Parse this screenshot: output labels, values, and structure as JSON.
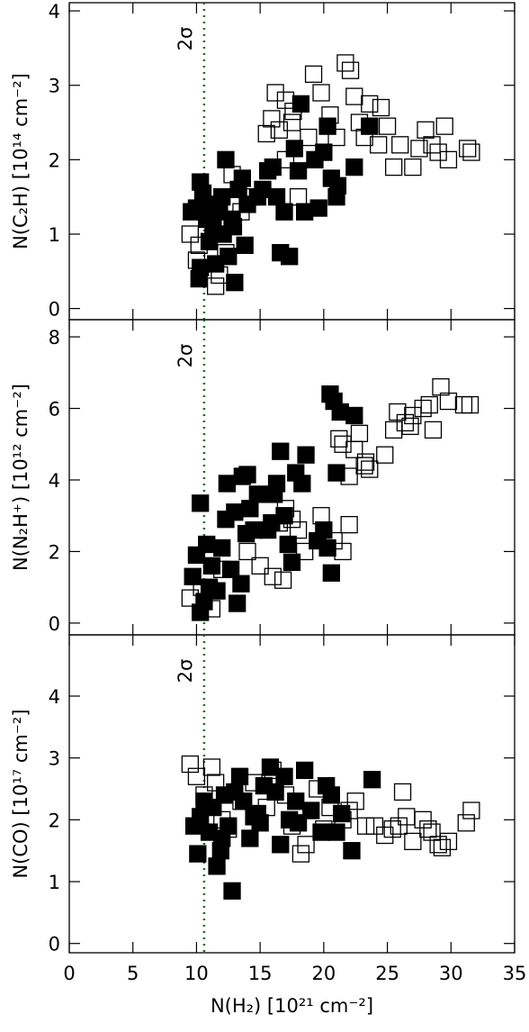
{
  "chart_data": [
    {
      "type": "scatter",
      "ylabel": "N(C₂H) [10¹⁴ cm⁻²]",
      "xlim": [
        0,
        35
      ],
      "xticks": [
        0,
        5,
        10,
        15,
        20,
        25,
        30,
        35
      ],
      "ylim": [
        -0.15,
        4.11
      ],
      "yticks": [
        0,
        1,
        2,
        3,
        4
      ],
      "threshold": {
        "x": 10.6,
        "label": "2σ",
        "color": "#1a6e1a"
      },
      "series": [
        {
          "color": "#000000",
          "marker": "filled",
          "x": [
            10.3,
            10.5,
            10.2,
            10.3,
            9.6,
            10.0,
            10.8,
            11.0,
            11.3,
            11.5,
            11.8,
            12.0,
            12.1,
            12.3,
            12.5,
            12.8,
            13.0,
            13.3,
            13.6,
            13.8,
            14.0,
            15.2,
            15.6,
            16.0,
            16.3,
            16.6,
            16.9,
            17.3,
            17.7,
            18.2,
            18.0,
            18.5,
            19.3,
            19.6,
            20.0,
            20.3,
            20.6,
            21.0,
            21.1,
            22.4,
            23.6,
            12.9,
            11.2,
            14.8
          ],
          "values": [
            1.7,
            1.55,
            0.4,
            0.55,
            1.3,
            1.35,
            1.2,
            0.9,
            1.1,
            0.6,
            1.3,
            1.5,
            1.0,
            2.0,
            0.7,
            1.2,
            0.35,
            1.6,
            1.75,
            0.85,
            1.4,
            1.6,
            1.85,
            1.9,
            1.5,
            0.75,
            1.3,
            0.7,
            2.15,
            2.75,
            1.85,
            1.3,
            2.0,
            1.35,
            2.1,
            2.45,
            1.75,
            1.5,
            1.65,
            1.9,
            2.45,
            1.1,
            1.4,
            1.5
          ]
        },
        {
          "color": "#000000",
          "marker": "open",
          "x": [
            9.5,
            10.0,
            10.2,
            11.5,
            11.8,
            12.3,
            12.8,
            13.5,
            14.2,
            15.5,
            15.9,
            16.5,
            17.0,
            17.5,
            16.2,
            17.0,
            18.0,
            18.8,
            19.2,
            19.8,
            20.5,
            21.0,
            21.7,
            22.1,
            22.4,
            22.8,
            23.2,
            23.6,
            24.5,
            25.0,
            24.3,
            25.5,
            26.0,
            27.0,
            27.5,
            28.0,
            28.5,
            29.0,
            29.5,
            29.8,
            31.3,
            31.6,
            17.6
          ],
          "values": [
            1.0,
            0.65,
            0.85,
            0.3,
            0.45,
            0.75,
            1.8,
            1.3,
            1.5,
            2.35,
            2.55,
            2.4,
            2.8,
            2.5,
            2.9,
            2.0,
            1.5,
            2.3,
            3.15,
            2.9,
            2.6,
            2.3,
            3.3,
            3.2,
            2.85,
            2.5,
            2.3,
            2.75,
            2.7,
            2.45,
            2.2,
            1.9,
            2.2,
            1.9,
            2.15,
            2.4,
            2.2,
            2.1,
            2.45,
            2.0,
            2.15,
            2.1,
            2.65
          ]
        }
      ]
    },
    {
      "type": "scatter",
      "ylabel": "N(N₂H⁺) [10¹² cm⁻²]",
      "xlim": [
        0,
        35
      ],
      "xticks": [
        0,
        5,
        10,
        15,
        20,
        25,
        30,
        35
      ],
      "ylim": [
        -0.33,
        8.48
      ],
      "yticks": [
        0,
        2,
        4,
        6,
        8
      ],
      "threshold": {
        "x": 10.6,
        "label": "2σ",
        "color": "#1a6e1a"
      },
      "series": [
        {
          "color": "#000000",
          "marker": "filled",
          "x": [
            10.3,
            10.3,
            10.6,
            10.0,
            9.7,
            10.8,
            11.2,
            11.6,
            12.0,
            12.3,
            12.4,
            12.7,
            13.0,
            13.2,
            13.6,
            13.9,
            14.0,
            14.2,
            14.8,
            15.6,
            15.9,
            16.1,
            16.3,
            16.6,
            16.9,
            17.2,
            17.5,
            17.8,
            18.3,
            18.6,
            19.5,
            20.0,
            20.3,
            20.6,
            20.5,
            20.8,
            21.0,
            21.3,
            22.4,
            13.5,
            11.0,
            14.5
          ],
          "values": [
            3.35,
            0.3,
            0.6,
            1.9,
            1.3,
            2.2,
            1.6,
            0.9,
            2.1,
            2.9,
            3.9,
            1.5,
            3.1,
            0.55,
            4.1,
            2.5,
            4.15,
            3.2,
            3.6,
            2.6,
            2.8,
            3.6,
            3.9,
            4.8,
            3.0,
            2.2,
            1.7,
            4.2,
            3.9,
            4.7,
            2.3,
            2.6,
            2.1,
            1.4,
            6.4,
            6.2,
            4.2,
            5.9,
            5.8,
            1.1,
            1.0,
            2.6
          ]
        },
        {
          "color": "#000000",
          "marker": "open",
          "x": [
            9.5,
            10.4,
            11.2,
            12.0,
            14.0,
            15.0,
            16.0,
            16.8,
            17.0,
            17.5,
            18.0,
            18.5,
            19.8,
            20.8,
            21.5,
            22.0,
            21.5,
            22.0,
            22.4,
            22.8,
            23.3,
            23.6,
            24.8,
            25.5,
            25.8,
            26.4,
            26.8,
            27.0,
            27.8,
            28.3,
            28.6,
            29.2,
            29.8,
            31.0,
            31.5,
            23.2,
            21.2,
            16.5
          ],
          "values": [
            0.7,
            1.0,
            0.4,
            1.5,
            2.0,
            1.6,
            1.3,
            1.2,
            3.2,
            2.9,
            2.6,
            2.0,
            3.0,
            2.3,
            2.0,
            2.75,
            5.0,
            4.1,
            4.85,
            5.3,
            4.5,
            4.3,
            4.7,
            5.4,
            5.9,
            5.6,
            5.5,
            5.8,
            6.0,
            6.1,
            5.4,
            6.6,
            6.2,
            6.1,
            6.1,
            4.4,
            5.15,
            2.8
          ]
        }
      ]
    },
    {
      "type": "scatter",
      "ylabel": "N(CO) [10¹⁷ cm⁻²]",
      "xlabel": "N(H₂) [10²¹ cm⁻²]",
      "xlim": [
        0,
        35
      ],
      "xticks": [
        0,
        5,
        10,
        15,
        20,
        25,
        30,
        35
      ],
      "ylim": [
        -0.15,
        4.99
      ],
      "yticks": [
        0,
        1,
        2,
        3,
        4
      ],
      "threshold": {
        "x": 10.6,
        "label": "2σ",
        "color": "#1a6e1a"
      },
      "series": [
        {
          "color": "#000000",
          "marker": "filled",
          "x": [
            9.8,
            10.1,
            10.3,
            10.6,
            11.0,
            11.3,
            11.6,
            11.9,
            12.2,
            12.5,
            12.8,
            13.0,
            13.4,
            13.7,
            14.2,
            14.5,
            15.0,
            15.3,
            15.8,
            16.2,
            16.6,
            16.9,
            17.3,
            17.8,
            18.5,
            19.0,
            19.8,
            20.2,
            20.6,
            21.0,
            21.4,
            22.2,
            23.8,
            12.0,
            14.8,
            18.0
          ],
          "values": [
            1.9,
            1.45,
            2.05,
            2.3,
            1.8,
            2.2,
            1.25,
            1.5,
            2.4,
            1.9,
            0.85,
            2.45,
            2.7,
            2.3,
            1.7,
            2.05,
            1.95,
            2.55,
            2.85,
            2.45,
            1.6,
            2.7,
            2.0,
            2.3,
            2.8,
            2.15,
            1.8,
            2.55,
            2.4,
            1.8,
            2.1,
            1.5,
            2.65,
            1.7,
            2.1,
            1.95
          ]
        },
        {
          "color": "#000000",
          "marker": "open",
          "x": [
            9.5,
            10.0,
            10.6,
            11.2,
            11.5,
            12.0,
            12.5,
            13.5,
            14.5,
            15.5,
            16.0,
            17.0,
            17.5,
            18.2,
            18.6,
            19.5,
            20.5,
            21.5,
            22.0,
            22.5,
            23.3,
            24.0,
            24.8,
            25.4,
            25.9,
            26.5,
            27.0,
            27.8,
            28.2,
            28.5,
            29.0,
            29.3,
            29.8,
            31.2,
            31.6,
            26.2,
            20.0
          ],
          "values": [
            2.9,
            2.7,
            2.4,
            2.85,
            2.6,
            2.0,
            1.85,
            2.3,
            2.6,
            2.2,
            2.8,
            2.4,
            1.9,
            1.45,
            1.6,
            2.5,
            2.2,
            2.0,
            2.15,
            2.3,
            1.9,
            1.9,
            1.75,
            1.85,
            1.9,
            2.05,
            1.65,
            2.0,
            1.85,
            1.8,
            1.6,
            1.55,
            1.65,
            1.95,
            2.15,
            2.45,
            1.85
          ]
        }
      ]
    }
  ]
}
